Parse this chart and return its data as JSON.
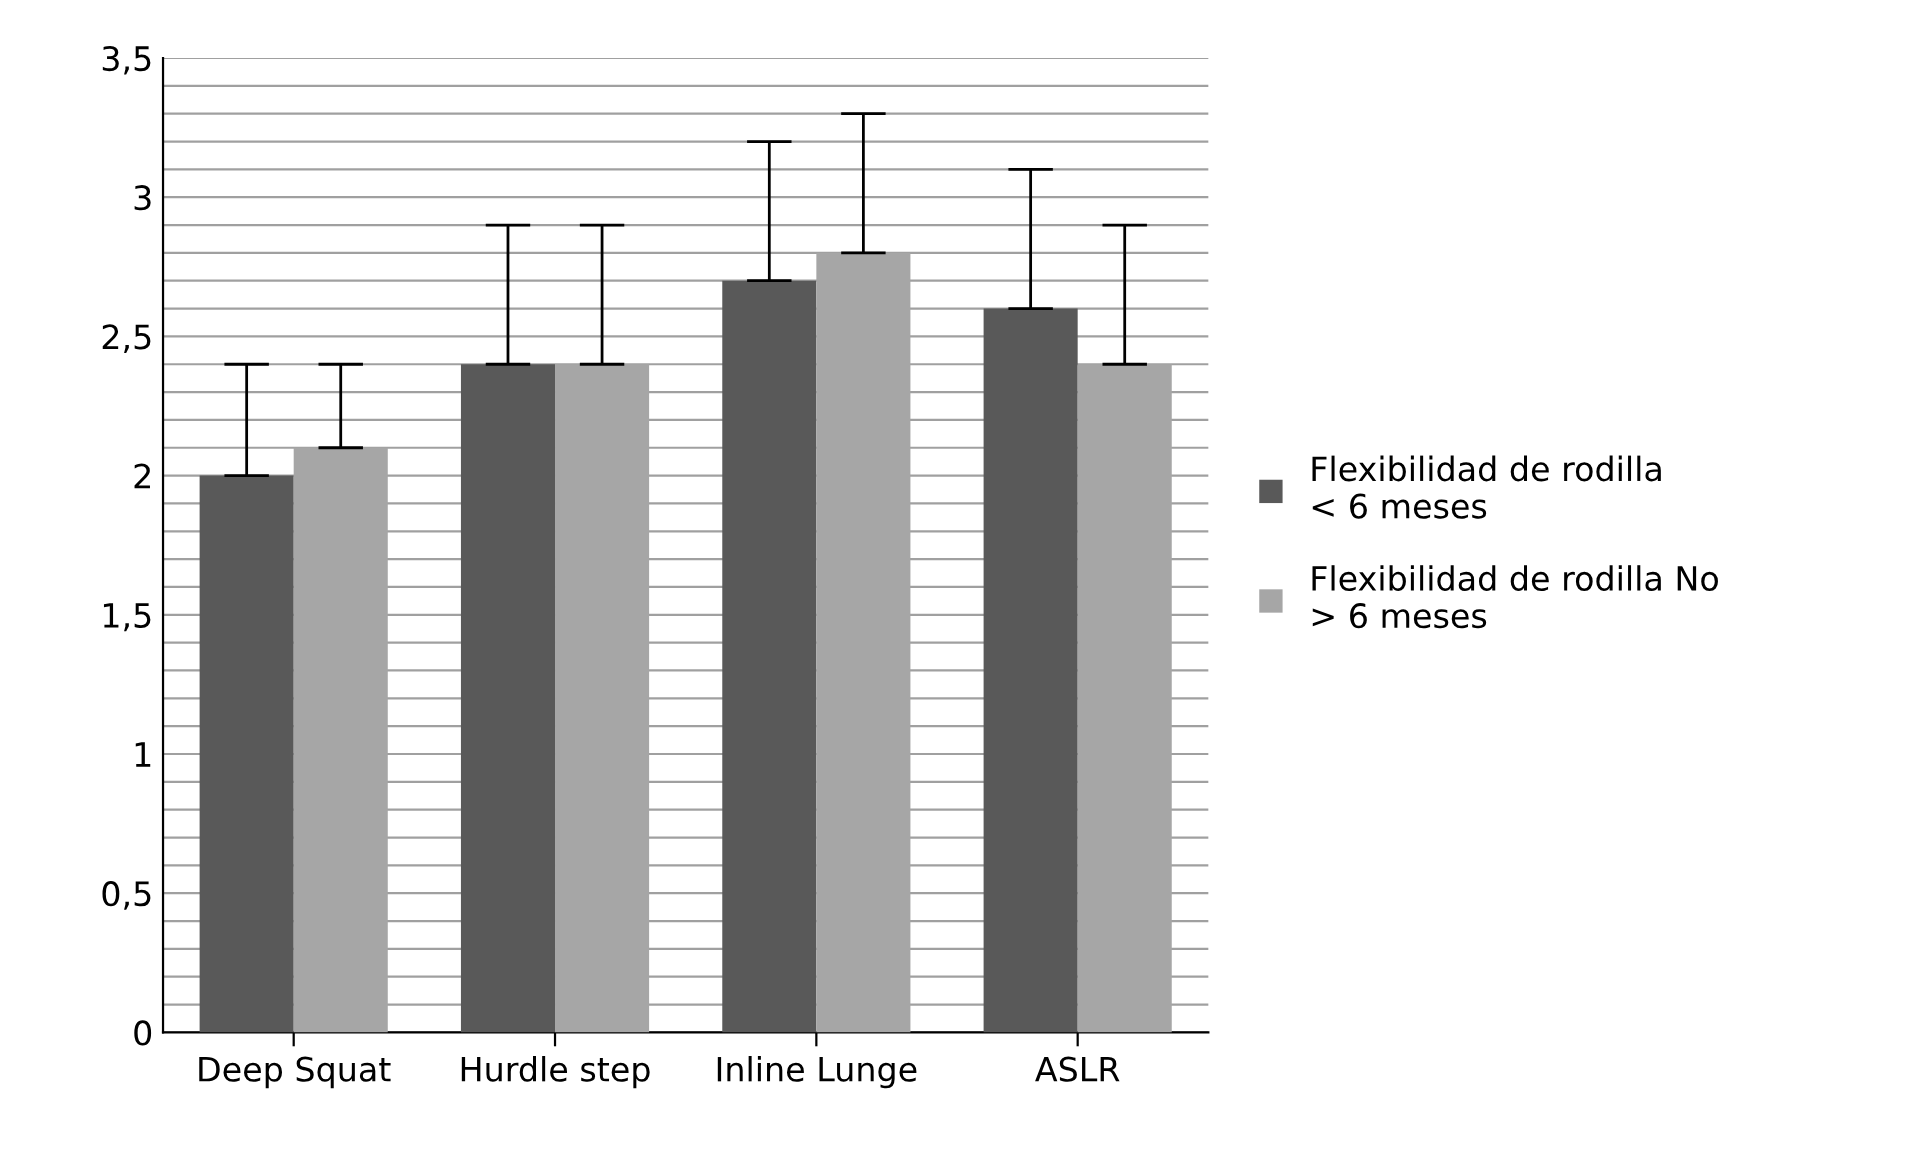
{
  "chart_data": {
    "type": "bar",
    "categories": [
      "Deep Squat",
      "Hurdle step",
      "Inline Lunge",
      "ASLR"
    ],
    "series": [
      {
        "name": "Flexibilidad de rodilla\n< 6 meses",
        "color": "#595959",
        "values": [
          2.0,
          2.4,
          2.7,
          2.6
        ],
        "errors": [
          [
            2.0,
            2.4
          ],
          [
            2.4,
            2.9
          ],
          [
            2.7,
            3.2
          ],
          [
            2.6,
            3.1
          ]
        ]
      },
      {
        "name": "Flexibilidad de rodilla No\n> 6 meses",
        "color": "#a6a6a6",
        "values": [
          2.1,
          2.4,
          2.8,
          2.4
        ],
        "errors": [
          [
            2.1,
            2.4
          ],
          [
            2.4,
            2.9
          ],
          [
            2.8,
            3.3
          ],
          [
            2.4,
            2.9
          ]
        ]
      }
    ],
    "ylim": [
      0,
      3.5
    ],
    "yticks": [
      {
        "value": 0,
        "label": "0"
      },
      {
        "value": 0.1,
        "label": null
      },
      {
        "value": 0.2,
        "label": null
      },
      {
        "value": 0.3,
        "label": null
      },
      {
        "value": 0.4,
        "label": null
      },
      {
        "value": 0.5,
        "label": "0,5"
      },
      {
        "value": 0.6,
        "label": null
      },
      {
        "value": 0.7,
        "label": null
      },
      {
        "value": 0.8,
        "label": null
      },
      {
        "value": 0.9,
        "label": null
      },
      {
        "value": 1,
        "label": "1"
      },
      {
        "value": 1.1,
        "label": null
      },
      {
        "value": 1.2,
        "label": null
      },
      {
        "value": 1.3,
        "label": null
      },
      {
        "value": 1.4,
        "label": null
      },
      {
        "value": 1.5,
        "label": "1,5"
      },
      {
        "value": 1.6,
        "label": null
      },
      {
        "value": 1.7,
        "label": null
      },
      {
        "value": 1.8,
        "label": null
      },
      {
        "value": 1.9,
        "label": null
      },
      {
        "value": 2,
        "label": "2"
      },
      {
        "value": 2.1,
        "label": null
      },
      {
        "value": 2.2,
        "label": null
      },
      {
        "value": 2.3,
        "label": null
      },
      {
        "value": 2.4,
        "label": null
      },
      {
        "value": 2.5,
        "label": "2,5"
      },
      {
        "value": 2.6,
        "label": null
      },
      {
        "value": 2.7,
        "label": null
      },
      {
        "value": 2.8,
        "label": null
      },
      {
        "value": 2.9,
        "label": null
      },
      {
        "value": 3,
        "label": "3"
      },
      {
        "value": 3.1,
        "label": null
      },
      {
        "value": 3.2,
        "label": null
      },
      {
        "value": 3.3,
        "label": null
      },
      {
        "value": 3.4,
        "label": null
      },
      {
        "value": 3.5,
        "label": "3,5"
      }
    ],
    "grid": "y",
    "legend": "right"
  }
}
